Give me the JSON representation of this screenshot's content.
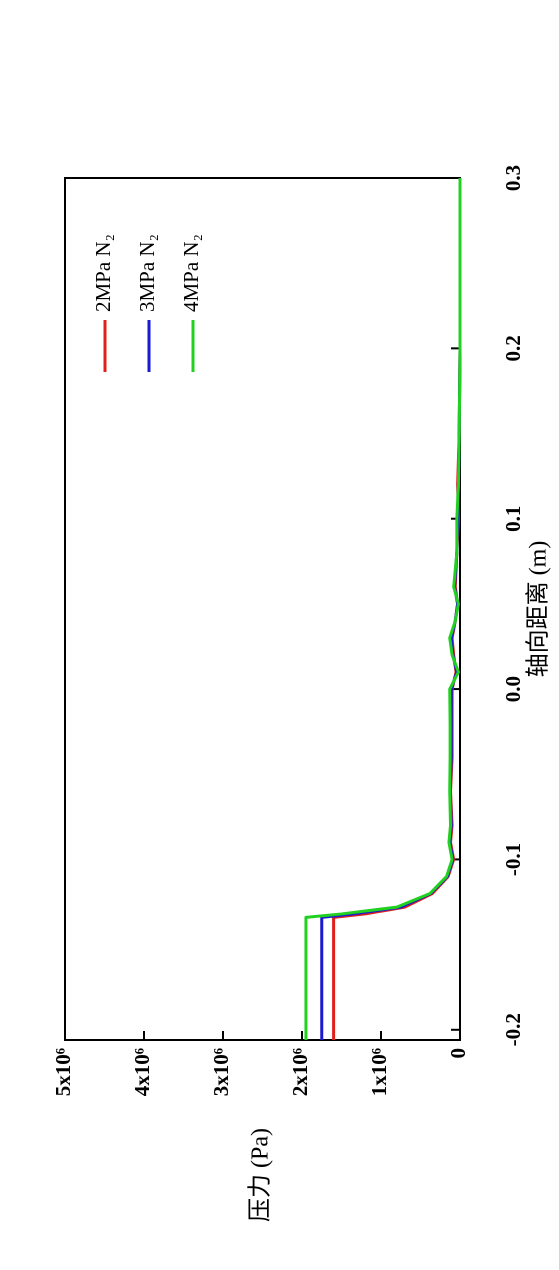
{
  "chart_data": {
    "type": "line",
    "x_label": "轴向距离 (m)",
    "y_label": "压力 (Pa)",
    "xlim": [
      -0.206,
      0.3
    ],
    "ylim": [
      0,
      5000000
    ],
    "xticks": [
      -0.2,
      -0.1,
      {
        "value": 0,
        "label": "0.0"
      },
      0.1,
      0.2,
      0.3
    ],
    "yticks": [
      0,
      {
        "value": 1000000,
        "label": "1x10⁶"
      },
      {
        "value": 2000000,
        "label": "2x10⁶"
      },
      {
        "value": 3000000,
        "label": "3x10⁶"
      },
      {
        "value": 4000000,
        "label": "4x10⁶"
      },
      {
        "value": 5000000,
        "label": "5x10⁶"
      }
    ],
    "legend": "upper right",
    "rotated": true,
    "x": [
      -0.206,
      -0.134,
      -0.132,
      -0.128,
      -0.12,
      -0.11,
      -0.1,
      -0.09,
      -0.08,
      -0.06,
      -0.04,
      -0.02,
      0,
      0.01,
      0.02,
      0.03,
      0.04,
      0.05,
      0.06,
      0.08,
      0.1,
      0.12,
      0.15,
      0.2,
      0.3
    ],
    "series": [
      {
        "name": "2MPa N₂",
        "color": "#e0201b",
        "values": [
          1600000,
          1600000,
          1200000,
          700000,
          350000,
          150000,
          80000,
          120000,
          100000,
          120000,
          100000,
          100000,
          100000,
          50000,
          80000,
          100000,
          60000,
          30000,
          60000,
          40000,
          20000,
          30000,
          10000,
          0,
          0
        ]
      },
      {
        "name": "3MPa N₂",
        "color": "#1a1ad0",
        "values": [
          1750000,
          1750000,
          1350000,
          750000,
          370000,
          160000,
          90000,
          130000,
          110000,
          125000,
          110000,
          110000,
          110000,
          40000,
          90000,
          110000,
          60000,
          30000,
          70000,
          40000,
          30000,
          20000,
          10000,
          0,
          0
        ]
      },
      {
        "name": "4MPa N₂",
        "color": "#22d022",
        "values": [
          1950000,
          1950000,
          1500000,
          800000,
          380000,
          170000,
          100000,
          140000,
          120000,
          130000,
          125000,
          125000,
          130000,
          20000,
          100000,
          130000,
          60000,
          20000,
          80000,
          40000,
          40000,
          20000,
          10000,
          0,
          0
        ]
      }
    ]
  }
}
